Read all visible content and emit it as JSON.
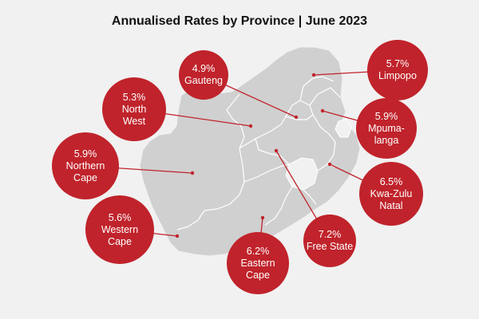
{
  "title": "Annualised Rates by Province  |  June 2023",
  "colors": {
    "background": "#f1f1f1",
    "land": "#d0d0d0",
    "border": "#ffffff",
    "bubble": "#c0232b",
    "leader": "#c0232b"
  },
  "provinces": [
    {
      "key": "gauteng",
      "rate": "4.9%",
      "name": "Gauteng"
    },
    {
      "key": "limpopo",
      "rate": "5.7%",
      "name": "Limpopo"
    },
    {
      "key": "north-west",
      "rate": "5.3%",
      "name": "North\nWest"
    },
    {
      "key": "mpumalanga",
      "rate": "5.9%",
      "name": "Mpuma-\nlanga"
    },
    {
      "key": "northern-cape",
      "rate": "5.9%",
      "name": "Northern\nCape"
    },
    {
      "key": "kwazulu-natal",
      "rate": "6.5%",
      "name": "Kwa-Zulu\nNatal"
    },
    {
      "key": "western-cape",
      "rate": "5.6%",
      "name": "Western\nCape"
    },
    {
      "key": "free-state",
      "rate": "7.2%",
      "name": "Free State"
    },
    {
      "key": "eastern-cape",
      "rate": "6.2%",
      "name": "Eastern\nCape"
    }
  ]
}
